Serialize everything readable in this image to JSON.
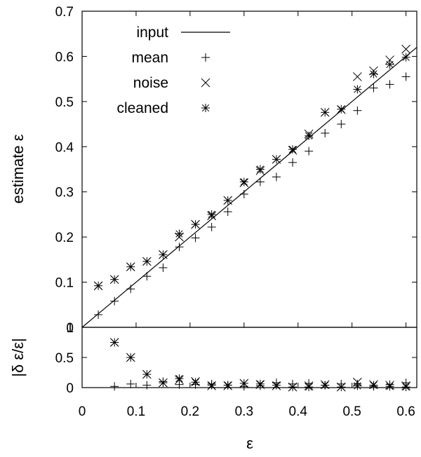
{
  "chart_data": [
    {
      "type": "scatter",
      "ylabel": "estimate ε",
      "xlim": [
        0,
        0.62
      ],
      "ylim": [
        0,
        0.7
      ],
      "xticks": [
        "0",
        "0.1",
        "0.2",
        "0.3",
        "0.4",
        "0.5",
        "0.6"
      ],
      "yticks": [
        "0",
        "0.1",
        "0.2",
        "0.3",
        "0.4",
        "0.5",
        "0.6",
        "0.7"
      ],
      "legend_position": "top-left",
      "series": [
        {
          "name": "input",
          "marker": "line",
          "x": [
            0,
            0.62
          ],
          "y": [
            0,
            0.62
          ]
        },
        {
          "name": "mean",
          "marker": "plus",
          "x": [
            0.03,
            0.06,
            0.09,
            0.12,
            0.15,
            0.18,
            0.21,
            0.24,
            0.27,
            0.3,
            0.33,
            0.36,
            0.39,
            0.42,
            0.45,
            0.48,
            0.51,
            0.54,
            0.57,
            0.6
          ],
          "y": [
            0.028,
            0.058,
            0.085,
            0.113,
            0.132,
            0.178,
            0.198,
            0.222,
            0.256,
            0.295,
            0.322,
            0.333,
            0.365,
            0.39,
            0.43,
            0.45,
            0.48,
            0.53,
            0.538,
            0.555
          ]
        },
        {
          "name": "noise",
          "marker": "cross",
          "x": [
            0.03,
            0.06,
            0.09,
            0.12,
            0.15,
            0.18,
            0.21,
            0.24,
            0.27,
            0.3,
            0.33,
            0.36,
            0.39,
            0.42,
            0.45,
            0.48,
            0.51,
            0.54,
            0.57,
            0.6
          ],
          "y": [
            0.092,
            0.106,
            0.134,
            0.146,
            0.161,
            0.2,
            0.228,
            0.247,
            0.281,
            0.32,
            0.347,
            0.372,
            0.392,
            0.428,
            0.476,
            0.482,
            0.555,
            0.568,
            0.592,
            0.616
          ]
        },
        {
          "name": "cleaned",
          "marker": "star",
          "x": [
            0.03,
            0.06,
            0.09,
            0.12,
            0.15,
            0.18,
            0.21,
            0.24,
            0.27,
            0.3,
            0.33,
            0.36,
            0.39,
            0.42,
            0.45,
            0.48,
            0.51,
            0.54,
            0.57,
            0.6
          ],
          "y": [
            0.092,
            0.106,
            0.134,
            0.146,
            0.161,
            0.207,
            0.228,
            0.25,
            0.281,
            0.322,
            0.35,
            0.372,
            0.394,
            0.424,
            0.476,
            0.483,
            0.527,
            0.561,
            0.582,
            0.598
          ]
        }
      ]
    },
    {
      "type": "scatter",
      "xlabel": "ε",
      "ylabel": "|δ ε/ε|",
      "xlim": [
        0,
        0.62
      ],
      "ylim": [
        0,
        1
      ],
      "yticks": [
        "0",
        "0.5",
        "1"
      ],
      "series": [
        {
          "name": "mean",
          "marker": "plus",
          "x": [
            0.06,
            0.09,
            0.12,
            0.15,
            0.18,
            0.21,
            0.24,
            0.27,
            0.3,
            0.33,
            0.36,
            0.39,
            0.42,
            0.45,
            0.48,
            0.51,
            0.54,
            0.57,
            0.6
          ],
          "y": [
            0.02,
            0.06,
            0.04,
            0.1,
            0.05,
            0.05,
            0.06,
            0.04,
            0.02,
            0.03,
            0.08,
            0.06,
            0.07,
            0.04,
            0.06,
            0.06,
            0.02,
            0.05,
            0.08
          ]
        },
        {
          "name": "noise",
          "marker": "cross",
          "x": [
            0.06,
            0.09,
            0.12,
            0.15,
            0.18,
            0.21,
            0.24,
            0.27,
            0.3,
            0.33,
            0.36,
            0.39,
            0.42,
            0.45,
            0.48,
            0.51,
            0.54,
            0.57,
            0.6
          ],
          "y": [
            0.75,
            0.5,
            0.22,
            0.08,
            0.13,
            0.1,
            0.03,
            0.03,
            0.07,
            0.05,
            0.03,
            0.01,
            0.03,
            0.05,
            0.01,
            0.09,
            0.05,
            0.04,
            0.03
          ]
        },
        {
          "name": "cleaned",
          "marker": "star",
          "x": [
            0.06,
            0.09,
            0.12,
            0.15,
            0.18,
            0.21,
            0.24,
            0.27,
            0.3,
            0.33,
            0.36,
            0.39,
            0.42,
            0.45,
            0.48,
            0.51,
            0.54,
            0.57,
            0.6
          ],
          "y": [
            0.75,
            0.5,
            0.22,
            0.08,
            0.15,
            0.09,
            0.04,
            0.04,
            0.07,
            0.06,
            0.04,
            0.01,
            0.01,
            0.04,
            0.01,
            0.03,
            0.04,
            0.02,
            0.01
          ]
        }
      ]
    }
  ]
}
